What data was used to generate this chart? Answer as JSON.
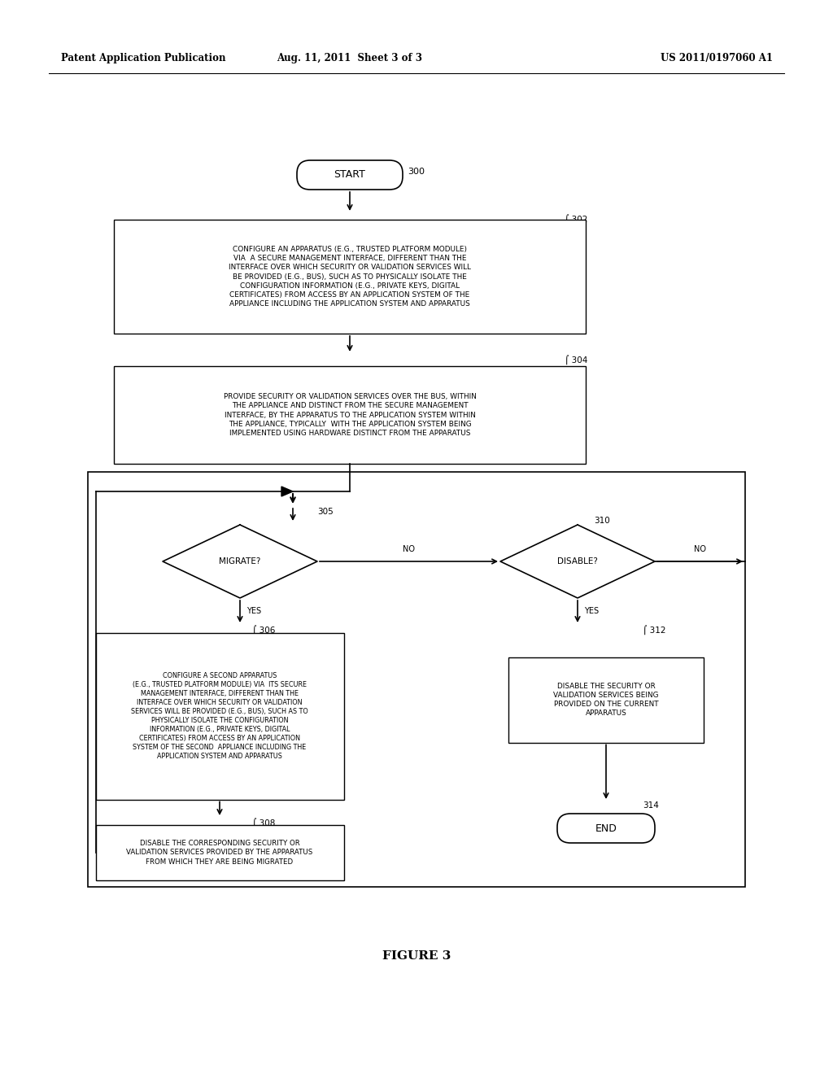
{
  "bg_color": "#ffffff",
  "header_left": "Patent Application Publication",
  "header_mid": "Aug. 11, 2011  Sheet 3 of 3",
  "header_right": "US 2011/0197060 A1",
  "figure_label": "FIGURE 3",
  "start_label": "START",
  "end_label": "END",
  "ref300": "300",
  "ref302": "302",
  "ref304": "304",
  "ref305": "305",
  "ref306": "306",
  "ref308": "308",
  "ref310": "310",
  "ref312": "312",
  "ref314": "314",
  "box302_text": "CONFIGURE AN APPARATUS (E.G., TRUSTED PLATFORM MODULE)\nVIA  A SECURE MANAGEMENT INTERFACE, DIFFERENT THAN THE\nINTERFACE OVER WHICH SECURITY OR VALIDATION SERVICES WILL\nBE PROVIDED (E.G., BUS), SUCH AS TO PHYSICALLY ISOLATE THE\nCONFIGURATION INFORMATION (E.G., PRIVATE KEYS, DIGITAL\nCERTIFICATES) FROM ACCESS BY AN APPLICATION SYSTEM OF THE\nAPPLIANCE INCLUDING THE APPLICATION SYSTEM AND APPARATUS",
  "box304_text": "PROVIDE SECURITY OR VALIDATION SERVICES OVER THE BUS, WITHIN\nTHE APPLIANCE AND DISTINCT FROM THE SECURE MANAGEMENT\nINTERFACE, BY THE APPARATUS TO THE APPLICATION SYSTEM WITHIN\nTHE APPLIANCE, TYPICALLY  WITH THE APPLICATION SYSTEM BEING\nIMPLEMENTED USING HARDWARE DISTINCT FROM THE APPARATUS",
  "dia305_text": "MIGRATE?",
  "dia310_text": "DISABLE?",
  "box306_text": "CONFIGURE A SECOND APPARATUS\n(E.G., TRUSTED PLATFORM MODULE) VIA  ITS SECURE\nMANAGEMENT INTERFACE, DIFFERENT THAN THE\nINTERFACE OVER WHICH SECURITY OR VALIDATION\nSERVICES WILL BE PROVIDED (E.G., BUS), SUCH AS TO\nPHYSICALLY ISOLATE THE CONFIGURATION\nINFORMATION (E.G., PRIVATE KEYS, DIGITAL\nCERTIFICATES) FROM ACCESS BY AN APPLICATION\nSYSTEM OF THE SECOND  APPLIANCE INCLUDING THE\nAPPLICATION SYSTEM AND APPARATUS",
  "box308_text": "DISABLE THE CORRESPONDING SECURITY OR\nVALIDATION SERVICES PROVIDED BY THE APPARATUS\nFROM WHICH THEY ARE BEING MIGRATED",
  "box312_text": "DISABLE THE SECURITY OR\nVALIDATION SERVICES BEING\nPROVIDED ON THE CURRENT\nAPPARATUS",
  "label_no": "NO",
  "label_yes": "YES"
}
